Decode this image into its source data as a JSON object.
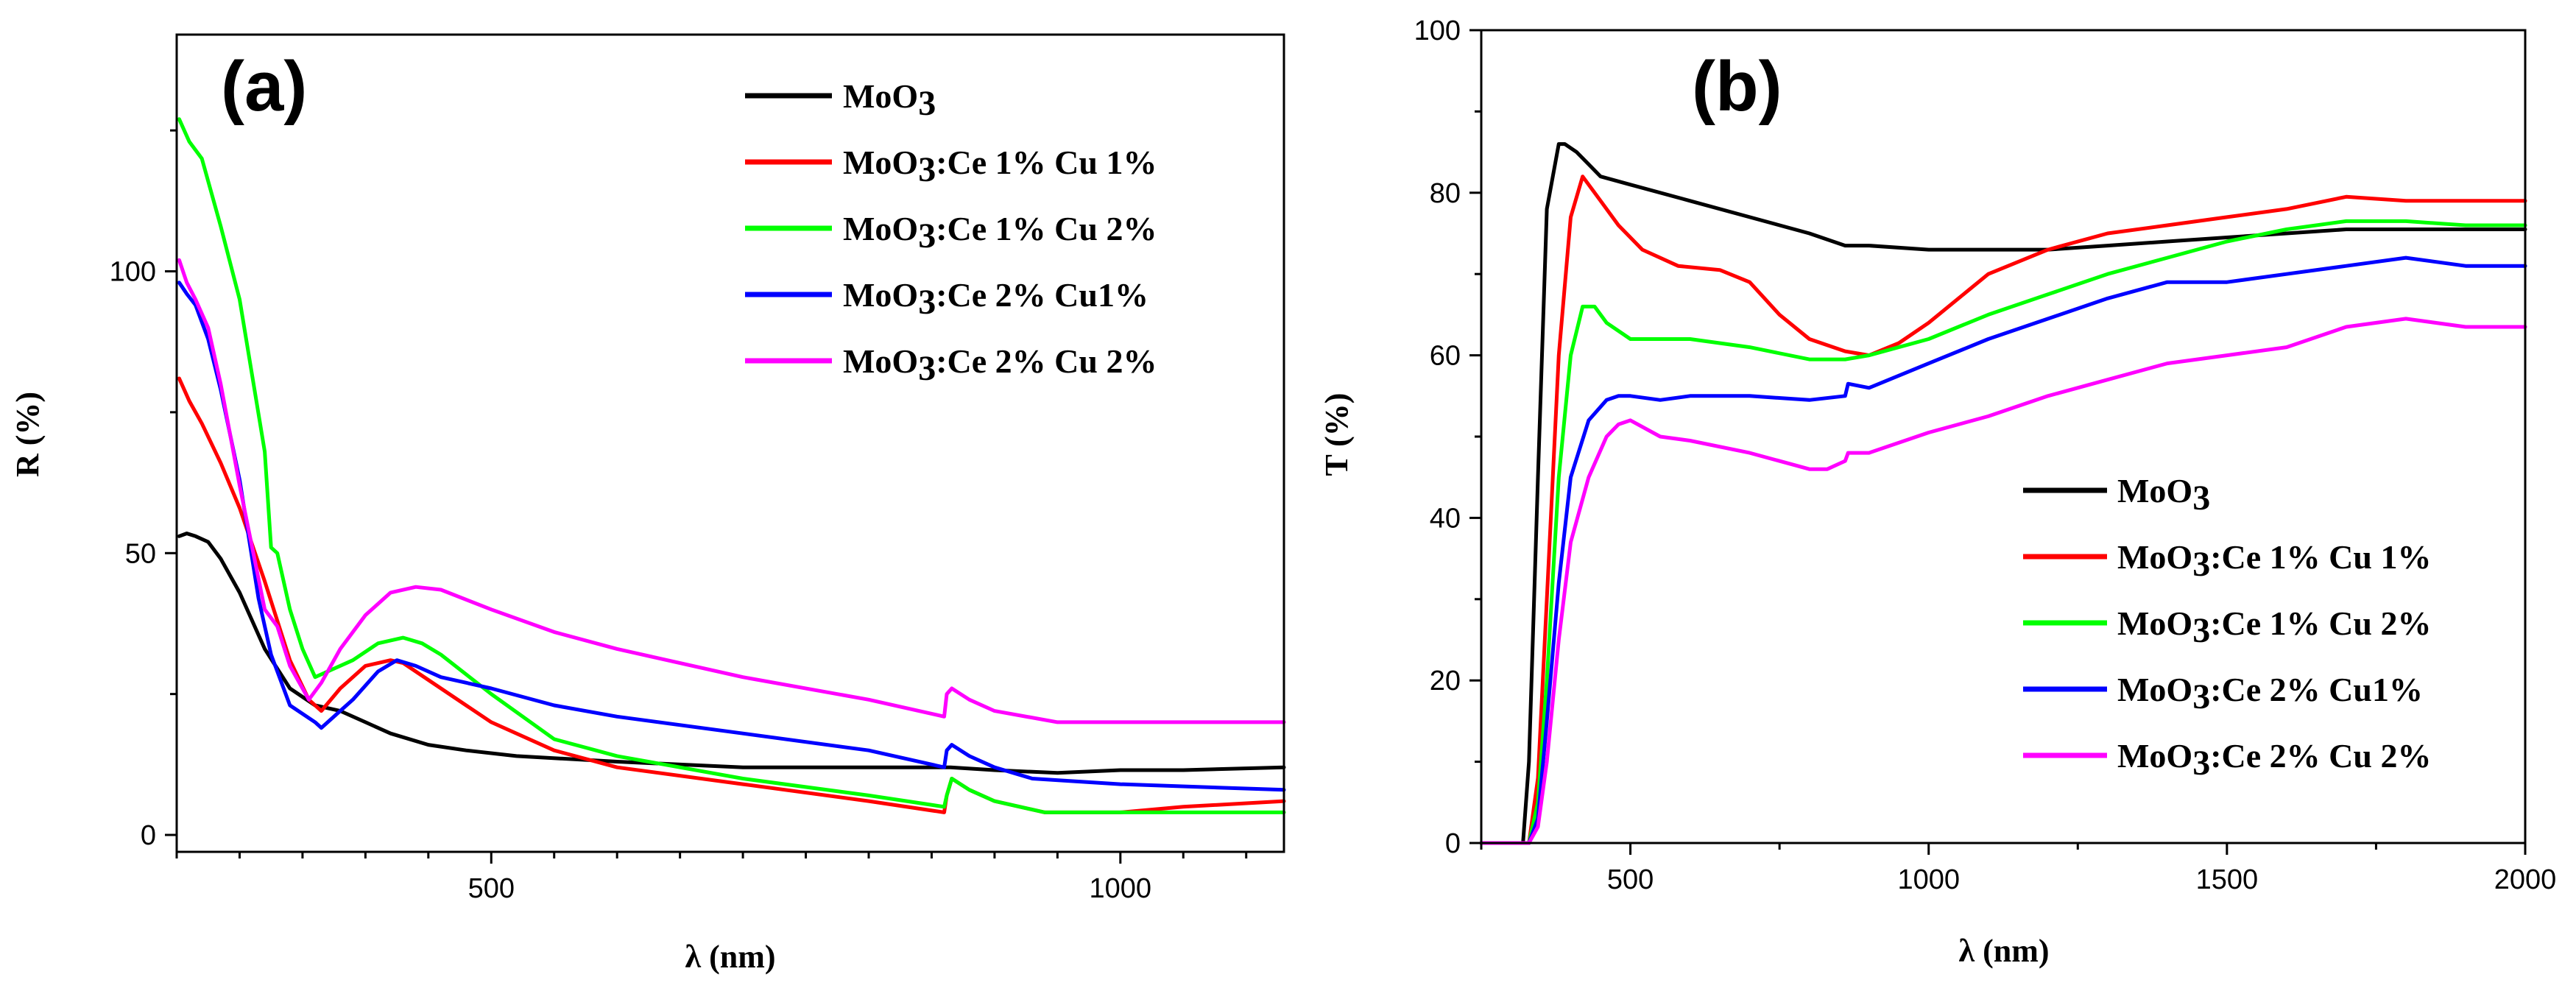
{
  "chart_data": [
    {
      "panel": "(a)",
      "type": "line",
      "xlabel": "λ (nm)",
      "ylabel": "R (%)",
      "xlim": [
        250,
        1130
      ],
      "ylim": [
        -3,
        142
      ],
      "xticks_major": [
        500,
        1000
      ],
      "xticks_minor": [
        250,
        300,
        350,
        400,
        450,
        550,
        600,
        650,
        700,
        750,
        800,
        850,
        900,
        950,
        1050,
        1100
      ],
      "yticks_major": [
        0,
        50,
        100
      ],
      "yticks_minor": [
        25,
        75,
        125
      ],
      "legend_position": "top-right",
      "series": [
        {
          "name": "MoO3",
          "label_main": "MoO",
          "label_sub": "3",
          "label_rest": "",
          "color": "#000000",
          "x": [
            252,
            258,
            265,
            275,
            285,
            300,
            320,
            340,
            360,
            380,
            400,
            420,
            450,
            480,
            520,
            600,
            700,
            800,
            860,
            865,
            900,
            950,
            1000,
            1050,
            1130
          ],
          "y": [
            53,
            53.5,
            53,
            52,
            49,
            43,
            33,
            26,
            23,
            22,
            20,
            18,
            16,
            15,
            14,
            13,
            12,
            12,
            12,
            12,
            11.5,
            11,
            11.5,
            11.5,
            12
          ]
        },
        {
          "name": "MoO3:Ce 1% Cu 1%",
          "label_main": "MoO",
          "label_sub": "3",
          "label_rest": ":Ce 1% Cu 1%",
          "color": "#ff0000",
          "x": [
            252,
            260,
            270,
            285,
            300,
            320,
            340,
            355,
            365,
            380,
            400,
            420,
            430,
            440,
            460,
            480,
            500,
            550,
            600,
            700,
            800,
            860,
            862,
            866,
            880,
            900,
            940,
            960,
            1000,
            1050,
            1130
          ],
          "y": [
            81,
            77,
            73,
            66,
            58,
            45,
            31,
            24,
            22,
            26,
            30,
            31,
            30.5,
            29,
            26,
            23,
            20,
            15,
            12,
            9,
            6,
            4,
            7,
            10,
            8,
            6,
            4,
            4,
            4,
            5,
            6
          ]
        },
        {
          "name": "MoO3:Ce 1% Cu 2%",
          "label_main": "MoO",
          "label_sub": "3",
          "label_rest": ":Ce 1% Cu 2%",
          "color": "#00ff00",
          "x": [
            252,
            260,
            270,
            285,
            300,
            320,
            325,
            330,
            340,
            350,
            360,
            370,
            390,
            410,
            430,
            445,
            460,
            500,
            550,
            600,
            700,
            800,
            860,
            862,
            866,
            880,
            900,
            940,
            1000,
            1050,
            1130
          ],
          "y": [
            127,
            123,
            120,
            108,
            95,
            68,
            51,
            50,
            40,
            33,
            28,
            29,
            31,
            34,
            35,
            34,
            32,
            25,
            17,
            14,
            10,
            7,
            5,
            7,
            10,
            8,
            6,
            4,
            4,
            4,
            4
          ]
        },
        {
          "name": "MoO3:Ce 2% Cu1%",
          "label_main": "MoO",
          "label_sub": "3",
          "label_rest": ":Ce 2% Cu1%",
          "color": "#0000ff",
          "x": [
            252,
            258,
            265,
            275,
            285,
            300,
            315,
            325,
            340,
            360,
            365,
            375,
            390,
            410,
            425,
            440,
            460,
            500,
            550,
            600,
            700,
            800,
            860,
            862,
            866,
            880,
            900,
            930,
            1000,
            1130
          ],
          "y": [
            98,
            96,
            94,
            88,
            79,
            63,
            42,
            32,
            23,
            20,
            19,
            21,
            24,
            29,
            31,
            30,
            28,
            26,
            23,
            21,
            18,
            15,
            12,
            15,
            16,
            14,
            12,
            10,
            9,
            8
          ]
        },
        {
          "name": "MoO3:Ce 2% Cu 2%",
          "label_main": "MoO",
          "label_sub": "3",
          "label_rest": ":Ce 2% Cu 2%",
          "color": "#ff00ff",
          "x": [
            252,
            258,
            265,
            275,
            285,
            300,
            320,
            330,
            340,
            350,
            355,
            365,
            380,
            400,
            420,
            440,
            460,
            500,
            550,
            600,
            700,
            800,
            860,
            862,
            866,
            880,
            900,
            950,
            1000,
            1130
          ],
          "y": [
            102,
            98,
            95,
            90,
            80,
            62,
            40,
            37,
            30,
            26,
            24,
            27,
            33,
            39,
            43,
            44,
            43.5,
            40,
            36,
            33,
            28,
            24,
            21,
            25,
            26,
            24,
            22,
            20,
            20,
            20
          ]
        }
      ]
    },
    {
      "panel": "(b)",
      "type": "line",
      "xlabel": "λ (nm)",
      "ylabel": "T (%)",
      "xlim": [
        250,
        2000
      ],
      "ylim": [
        0,
        100
      ],
      "xticks_major": [
        500,
        1000,
        1500,
        2000
      ],
      "xticks_minor": [
        250,
        750,
        1250,
        1750
      ],
      "yticks_major": [
        0,
        20,
        40,
        60,
        80,
        100
      ],
      "yticks_minor": [
        10,
        30,
        50,
        70,
        90
      ],
      "legend_position": "bottom-right",
      "series": [
        {
          "name": "MoO3",
          "label_main": "MoO",
          "label_sub": "3",
          "label_rest": "",
          "color": "#000000",
          "x": [
            250,
            300,
            320,
            330,
            345,
            360,
            380,
            390,
            410,
            450,
            500,
            600,
            700,
            800,
            860,
            870,
            900,
            1000,
            1100,
            1200,
            1300,
            1400,
            1500,
            1600,
            1700,
            1800,
            1900,
            2000
          ],
          "y": [
            0,
            0,
            0,
            10,
            45,
            78,
            86,
            86,
            85,
            82,
            81,
            79,
            77,
            75,
            73.5,
            73.5,
            73.5,
            73,
            73,
            73,
            73.5,
            74,
            74.5,
            75,
            75.5,
            75.5,
            75.5,
            75.5
          ]
        },
        {
          "name": "MoO3:Ce 1% Cu 1%",
          "label_main": "MoO",
          "label_sub": "3",
          "label_rest": ":Ce 1% Cu 1%",
          "color": "#ff0000",
          "x": [
            250,
            300,
            330,
            345,
            360,
            380,
            400,
            420,
            430,
            450,
            480,
            520,
            580,
            650,
            700,
            750,
            800,
            860,
            900,
            950,
            1000,
            1050,
            1100,
            1200,
            1300,
            1400,
            1500,
            1600,
            1700,
            1800,
            1900,
            2000
          ],
          "y": [
            0,
            0,
            0,
            8,
            30,
            60,
            77,
            82,
            81,
            79,
            76,
            73,
            71,
            70.5,
            69,
            65,
            62,
            60.5,
            60,
            61.5,
            64,
            67,
            70,
            73,
            75,
            76,
            77,
            78,
            79.5,
            79,
            79,
            79
          ]
        },
        {
          "name": "MoO3:Ce 1% Cu 2%",
          "label_main": "MoO",
          "label_sub": "3",
          "label_rest": ":Ce 1% Cu 2%",
          "color": "#00ff00",
          "x": [
            250,
            300,
            330,
            345,
            360,
            380,
            400,
            420,
            440,
            460,
            500,
            550,
            600,
            700,
            800,
            860,
            900,
            1000,
            1100,
            1200,
            1300,
            1400,
            1500,
            1600,
            1700,
            1800,
            1900,
            2000
          ],
          "y": [
            0,
            0,
            0,
            5,
            20,
            45,
            60,
            66,
            66,
            64,
            62,
            62,
            62,
            61,
            59.5,
            59.5,
            60,
            62,
            65,
            67.5,
            70,
            72,
            74,
            75.5,
            76.5,
            76.5,
            76,
            76
          ]
        },
        {
          "name": "MoO3:Ce 2% Cu1%",
          "label_main": "MoO",
          "label_sub": "3",
          "label_rest": ":Ce 2% Cu1%",
          "color": "#0000ff",
          "x": [
            250,
            300,
            330,
            345,
            360,
            380,
            400,
            430,
            460,
            480,
            500,
            550,
            600,
            650,
            700,
            800,
            860,
            865,
            900,
            1000,
            1100,
            1200,
            1300,
            1400,
            1500,
            1600,
            1700,
            1800,
            1900,
            2000
          ],
          "y": [
            0,
            0,
            0,
            3,
            15,
            32,
            45,
            52,
            54.5,
            55,
            55,
            54.5,
            55,
            55,
            55,
            54.5,
            55,
            56.5,
            56,
            59,
            62,
            64.5,
            67,
            69,
            69,
            70,
            71,
            72,
            71,
            71
          ]
        },
        {
          "name": "MoO3:Ce 2% Cu 2%",
          "label_main": "MoO",
          "label_sub": "3",
          "label_rest": ":Ce 2% Cu 2%",
          "color": "#ff00ff",
          "x": [
            250,
            300,
            330,
            345,
            360,
            380,
            400,
            430,
            460,
            480,
            500,
            550,
            600,
            700,
            800,
            830,
            860,
            865,
            900,
            1000,
            1100,
            1200,
            1300,
            1400,
            1500,
            1600,
            1700,
            1800,
            1900,
            2000
          ],
          "y": [
            0,
            0,
            0,
            2,
            10,
            25,
            37,
            45,
            50,
            51.5,
            52,
            50,
            49.5,
            48,
            46,
            46,
            47,
            48,
            48,
            50.5,
            52.5,
            55,
            57,
            59,
            60,
            61,
            63.5,
            64.5,
            63.5,
            63.5
          ]
        }
      ]
    }
  ]
}
